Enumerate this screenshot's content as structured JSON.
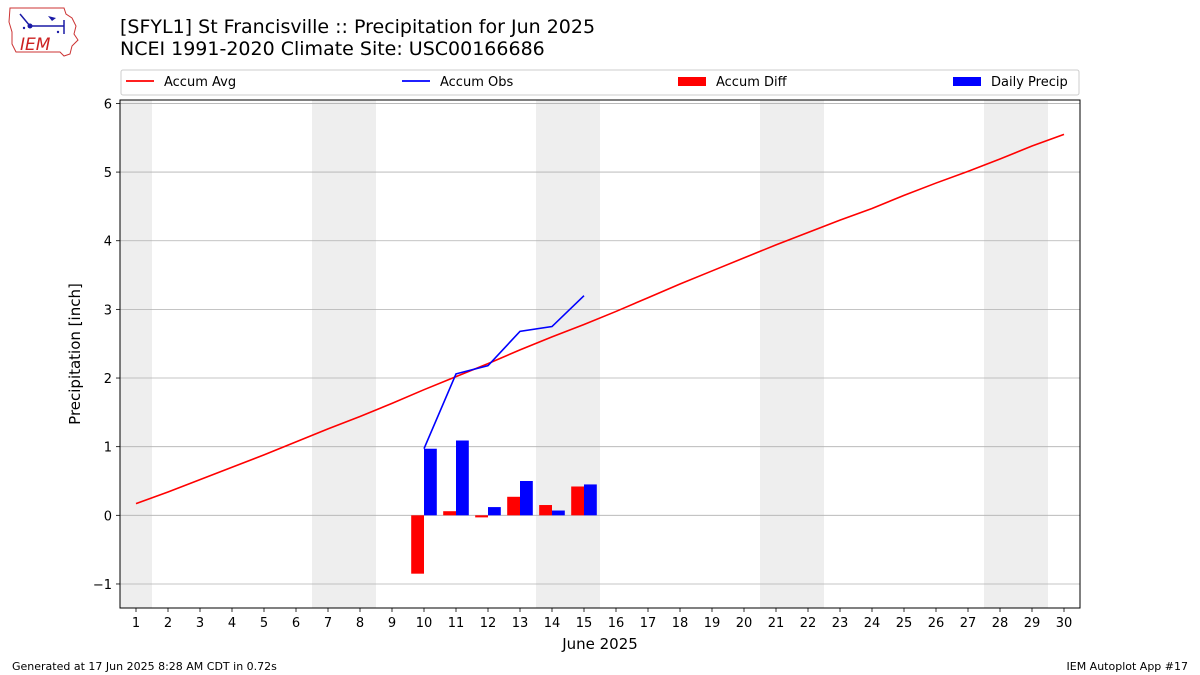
{
  "header": {
    "title_line1": "[SFYL1] St Francisville :: Precipitation for Jun 2025",
    "title_line2": "NCEI 1991-2020 Climate Site: USC00166686",
    "logo_text": "IEM"
  },
  "footer": {
    "generated": "Generated at 17 Jun 2025 8:28 AM CDT in 0.72s",
    "app": "IEM Autoplot App #17"
  },
  "chart_data": {
    "type": "bar",
    "xlabel": "June 2025",
    "ylabel": "Precipitation [inch]",
    "xlim": [
      0.5,
      30.5
    ],
    "ylim": [
      -1.35,
      6.05
    ],
    "x_ticks": [
      1,
      2,
      3,
      4,
      5,
      6,
      7,
      8,
      9,
      10,
      11,
      12,
      13,
      14,
      15,
      16,
      17,
      18,
      19,
      20,
      21,
      22,
      23,
      24,
      25,
      26,
      27,
      28,
      29,
      30
    ],
    "y_ticks": [
      -1,
      0,
      1,
      2,
      3,
      4,
      5,
      6
    ],
    "y_tick_labels": [
      "−1",
      "0",
      "1",
      "2",
      "3",
      "4",
      "5",
      "6"
    ],
    "grid": "horizontal",
    "legend_placement": "top",
    "weekend_shading": [
      [
        0.5,
        1.5
      ],
      [
        6.5,
        8.5
      ],
      [
        13.5,
        15.5
      ],
      [
        20.5,
        22.5
      ],
      [
        27.5,
        29.5
      ]
    ],
    "series": [
      {
        "name": "Accum Avg",
        "kind": "line",
        "color": "#ff0000",
        "x": [
          1,
          2,
          3,
          4,
          5,
          6,
          7,
          8,
          9,
          10,
          11,
          12,
          13,
          14,
          15,
          16,
          17,
          18,
          19,
          20,
          21,
          22,
          23,
          24,
          25,
          26,
          27,
          28,
          29,
          30
        ],
        "values": [
          0.17,
          0.34,
          0.52,
          0.7,
          0.88,
          1.07,
          1.26,
          1.44,
          1.63,
          1.83,
          2.02,
          2.21,
          2.41,
          2.6,
          2.78,
          2.97,
          3.17,
          3.37,
          3.56,
          3.75,
          3.94,
          4.12,
          4.3,
          4.47,
          4.66,
          4.84,
          5.01,
          5.19,
          5.38,
          5.55
        ]
      },
      {
        "name": "Accum Obs",
        "kind": "line",
        "color": "#0000ff",
        "x": [
          10,
          11,
          12,
          13,
          14,
          15
        ],
        "values": [
          0.97,
          2.06,
          2.18,
          2.68,
          2.75,
          3.2
        ]
      },
      {
        "name": "Accum Diff",
        "kind": "bar",
        "color": "#ff0000",
        "x": [
          10,
          11,
          12,
          13,
          14,
          15
        ],
        "values": [
          -0.85,
          0.06,
          -0.03,
          0.27,
          0.15,
          0.42
        ]
      },
      {
        "name": "Daily Precip",
        "kind": "bar",
        "color": "#0000ff",
        "x": [
          10,
          11,
          12,
          13,
          14,
          15
        ],
        "values": [
          0.97,
          1.09,
          0.12,
          0.5,
          0.07,
          0.45
        ]
      }
    ]
  }
}
